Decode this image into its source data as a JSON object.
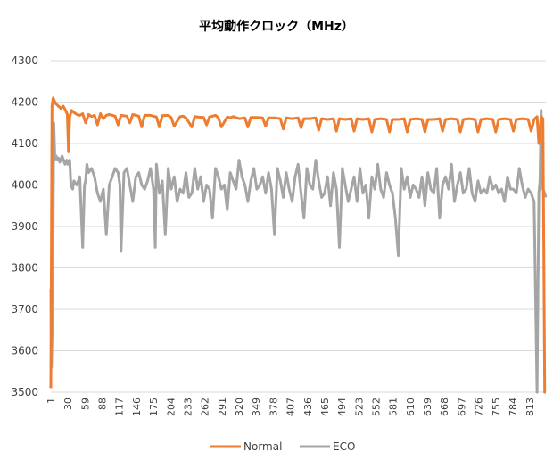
{
  "chart_data": {
    "type": "line",
    "title": "平均動作クロック（MHz）",
    "xlabel": "",
    "ylabel": "",
    "ylim": [
      3500,
      4300
    ],
    "yticks": [
      3500,
      3600,
      3700,
      3800,
      3900,
      4000,
      4100,
      4200,
      4300
    ],
    "xlim": [
      1,
      840
    ],
    "xtick_labels": [
      "1",
      "30",
      "59",
      "88",
      "117",
      "146",
      "175",
      "204",
      "233",
      "262",
      "291",
      "320",
      "349",
      "378",
      "407",
      "436",
      "465",
      "494",
      "523",
      "552",
      "581",
      "610",
      "639",
      "668",
      "697",
      "726",
      "755",
      "784",
      "813"
    ],
    "grid": "horizontal",
    "legend_position": "bottom",
    "series": [
      {
        "name": "Normal",
        "color": "#ED7D31",
        "x": [
          1,
          3,
          5,
          8,
          10,
          14,
          18,
          22,
          26,
          29,
          31,
          33,
          36,
          40,
          45,
          50,
          55,
          60,
          65,
          70,
          75,
          80,
          85,
          90,
          95,
          100,
          110,
          115,
          120,
          130,
          135,
          140,
          150,
          155,
          160,
          170,
          180,
          185,
          190,
          200,
          205,
          210,
          220,
          225,
          230,
          240,
          245,
          250,
          260,
          265,
          270,
          280,
          285,
          290,
          300,
          305,
          310,
          320,
          330,
          335,
          340,
          350,
          360,
          365,
          370,
          380,
          390,
          395,
          400,
          410,
          420,
          425,
          430,
          440,
          450,
          455,
          460,
          470,
          480,
          485,
          490,
          500,
          510,
          515,
          520,
          530,
          540,
          545,
          550,
          560,
          570,
          575,
          580,
          590,
          600,
          605,
          610,
          620,
          630,
          635,
          640,
          650,
          660,
          665,
          670,
          680,
          690,
          695,
          700,
          710,
          720,
          725,
          730,
          740,
          750,
          755,
          760,
          770,
          780,
          785,
          790,
          800,
          810,
          815,
          820,
          825,
          828,
          832,
          835,
          838,
          840
        ],
        "y": [
          3510,
          4190,
          4210,
          4200,
          4195,
          4190,
          4185,
          4190,
          4180,
          4170,
          4080,
          4165,
          4180,
          4175,
          4170,
          4168,
          4172,
          4150,
          4170,
          4165,
          4168,
          4145,
          4172,
          4160,
          4168,
          4170,
          4166,
          4145,
          4168,
          4166,
          4150,
          4170,
          4166,
          4140,
          4168,
          4168,
          4164,
          4140,
          4167,
          4168,
          4163,
          4142,
          4165,
          4166,
          4162,
          4140,
          4165,
          4164,
          4163,
          4145,
          4164,
          4168,
          4162,
          4140,
          4164,
          4162,
          4165,
          4160,
          4162,
          4140,
          4163,
          4163,
          4162,
          4142,
          4162,
          4162,
          4160,
          4135,
          4162,
          4160,
          4162,
          4138,
          4160,
          4160,
          4162,
          4132,
          4160,
          4158,
          4160,
          4130,
          4160,
          4158,
          4160,
          4130,
          4160,
          4158,
          4160,
          4128,
          4158,
          4160,
          4158,
          4128,
          4158,
          4158,
          4160,
          4128,
          4158,
          4160,
          4158,
          4128,
          4158,
          4158,
          4160,
          4130,
          4158,
          4160,
          4158,
          4128,
          4158,
          4160,
          4158,
          4128,
          4158,
          4160,
          4158,
          4128,
          4158,
          4160,
          4158,
          4130,
          4158,
          4160,
          4158,
          4130,
          4158,
          4165,
          4100,
          4165,
          4160,
          3500,
          3500
        ]
      },
      {
        "name": "ECO",
        "color": "#A5A5A5",
        "x": [
          1,
          2,
          3,
          4,
          5,
          6,
          8,
          10,
          12,
          14,
          16,
          18,
          20,
          25,
          28,
          30,
          33,
          35,
          38,
          40,
          45,
          50,
          55,
          58,
          60,
          62,
          65,
          70,
          75,
          80,
          85,
          90,
          95,
          100,
          105,
          110,
          115,
          118,
          120,
          125,
          130,
          135,
          140,
          145,
          150,
          155,
          160,
          165,
          170,
          175,
          178,
          180,
          185,
          190,
          195,
          200,
          205,
          210,
          215,
          220,
          225,
          230,
          235,
          240,
          245,
          250,
          255,
          260,
          265,
          270,
          275,
          280,
          285,
          290,
          295,
          300,
          305,
          310,
          315,
          320,
          325,
          330,
          335,
          340,
          345,
          350,
          355,
          360,
          365,
          370,
          375,
          380,
          385,
          390,
          395,
          400,
          405,
          410,
          415,
          420,
          425,
          430,
          435,
          440,
          445,
          450,
          455,
          460,
          465,
          470,
          475,
          480,
          485,
          490,
          495,
          500,
          505,
          510,
          515,
          520,
          525,
          530,
          535,
          540,
          545,
          550,
          555,
          560,
          565,
          570,
          575,
          580,
          585,
          590,
          595,
          600,
          605,
          610,
          615,
          620,
          625,
          630,
          635,
          640,
          645,
          650,
          655,
          660,
          665,
          670,
          675,
          680,
          685,
          690,
          695,
          700,
          705,
          710,
          715,
          720,
          725,
          730,
          735,
          740,
          745,
          750,
          755,
          760,
          765,
          770,
          775,
          780,
          785,
          790,
          795,
          800,
          805,
          810,
          815,
          820,
          825,
          828,
          830,
          832,
          835,
          838,
          840
        ],
        "y": [
          3750,
          3560,
          3620,
          3700,
          3900,
          4150,
          4060,
          4070,
          4060,
          4065,
          4055,
          4060,
          4070,
          4050,
          4060,
          4050,
          4060,
          4000,
          3990,
          4010,
          4000,
          4020,
          3850,
          4000,
          4010,
          4050,
          4030,
          4040,
          4020,
          3980,
          3960,
          3990,
          3880,
          4000,
          4020,
          4040,
          4030,
          4000,
          3840,
          4030,
          4040,
          4000,
          3960,
          4020,
          4030,
          4000,
          3990,
          4010,
          4040,
          3990,
          3850,
          4050,
          3980,
          4010,
          3880,
          4040,
          3990,
          4020,
          3960,
          3990,
          3980,
          4030,
          3970,
          3980,
          4040,
          3990,
          4020,
          3960,
          4000,
          3990,
          3920,
          4040,
          4020,
          3990,
          4000,
          3940,
          4030,
          4010,
          3990,
          4060,
          4020,
          4000,
          3960,
          4010,
          4040,
          3990,
          4000,
          4020,
          3980,
          4030,
          3990,
          3880,
          4040,
          4010,
          3970,
          4030,
          3990,
          3960,
          4020,
          4050,
          3980,
          3920,
          4040,
          4000,
          3990,
          4060,
          4010,
          3970,
          3980,
          4020,
          3950,
          4030,
          3990,
          3850,
          4040,
          4000,
          3960,
          3990,
          4020,
          3960,
          4040,
          3980,
          4000,
          3920,
          4020,
          3990,
          4050,
          3990,
          3970,
          4030,
          4000,
          3980,
          3920,
          3830,
          4040,
          3990,
          4020,
          3970,
          4000,
          3990,
          3970,
          4020,
          3950,
          4030,
          3990,
          3980,
          4040,
          3920,
          4000,
          4020,
          3990,
          4050,
          3960,
          4000,
          4030,
          3980,
          3990,
          4040,
          3980,
          3960,
          4010,
          3980,
          3990,
          3980,
          4020,
          3990,
          4000,
          3980,
          3990,
          3960,
          4020,
          3990,
          3990,
          3980,
          4040,
          4000,
          3970,
          3990,
          3980,
          3960,
          3500,
          3980,
          4010,
          4180,
          3990,
          3980,
          3970
        ]
      }
    ]
  }
}
